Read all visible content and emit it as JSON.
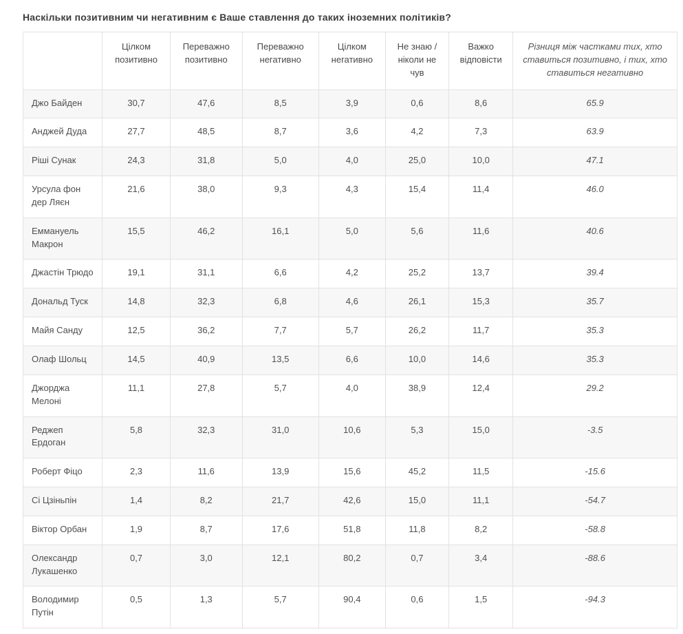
{
  "chart_data": {
    "type": "table",
    "title": "Наскільки позитивним чи негативним є Ваше ставлення до таких іноземних політиків?",
    "columns": [
      "",
      "Цілком позитивно",
      "Переважно позитивно",
      "Переважно негативно",
      "Цілком негативно",
      "Не знаю / ніколи не чув",
      "Важко відповісти",
      "Різниця між частками тих, хто ставиться позитивно, і тих, хто ставиться негативно"
    ],
    "rows": [
      {
        "name": "Джо Байден",
        "values": [
          "30,7",
          "47,6",
          "8,5",
          "3,9",
          "0,6",
          "8,6"
        ],
        "diff": "65.9"
      },
      {
        "name": "Анджей Дуда",
        "values": [
          "27,7",
          "48,5",
          "8,7",
          "3,6",
          "4,2",
          "7,3"
        ],
        "diff": "63.9"
      },
      {
        "name": "Ріші Сунак",
        "values": [
          "24,3",
          "31,8",
          "5,0",
          "4,0",
          "25,0",
          "10,0"
        ],
        "diff": "47.1"
      },
      {
        "name": "Урсула фон дер Ляєн",
        "values": [
          "21,6",
          "38,0",
          "9,3",
          "4,3",
          "15,4",
          "11,4"
        ],
        "diff": "46.0"
      },
      {
        "name": "Еммануель Макрон",
        "values": [
          "15,5",
          "46,2",
          "16,1",
          "5,0",
          "5,6",
          "11,6"
        ],
        "diff": "40.6"
      },
      {
        "name": "Джастін Трюдо",
        "values": [
          "19,1",
          "31,1",
          "6,6",
          "4,2",
          "25,2",
          "13,7"
        ],
        "diff": "39.4"
      },
      {
        "name": "Дональд Туск",
        "values": [
          "14,8",
          "32,3",
          "6,8",
          "4,6",
          "26,1",
          "15,3"
        ],
        "diff": "35.7"
      },
      {
        "name": "Майя Санду",
        "values": [
          "12,5",
          "36,2",
          "7,7",
          "5,7",
          "26,2",
          "11,7"
        ],
        "diff": "35.3"
      },
      {
        "name": "Олаф Шольц",
        "values": [
          "14,5",
          "40,9",
          "13,5",
          "6,6",
          "10,0",
          "14,6"
        ],
        "diff": "35.3"
      },
      {
        "name": "Джорджа Мелоні",
        "values": [
          "11,1",
          "27,8",
          "5,7",
          "4,0",
          "38,9",
          "12,4"
        ],
        "diff": "29.2"
      },
      {
        "name": "Реджеп Ердоган",
        "values": [
          "5,8",
          "32,3",
          "31,0",
          "10,6",
          "5,3",
          "15,0"
        ],
        "diff": "-3.5"
      },
      {
        "name": "Роберт Фіцо",
        "values": [
          "2,3",
          "11,6",
          "13,9",
          "15,6",
          "45,2",
          "11,5"
        ],
        "diff": "-15.6"
      },
      {
        "name": "Сі Цзіньпін",
        "values": [
          "1,4",
          "8,2",
          "21,7",
          "42,6",
          "15,0",
          "11,1"
        ],
        "diff": "-54.7"
      },
      {
        "name": "Віктор Орбан",
        "values": [
          "1,9",
          "8,7",
          "17,6",
          "51,8",
          "11,8",
          "8,2"
        ],
        "diff": "-58.8"
      },
      {
        "name": "Олександр Лукашенко",
        "values": [
          "0,7",
          "3,0",
          "12,1",
          "80,2",
          "0,7",
          "3,4"
        ],
        "diff": "-88.6"
      },
      {
        "name": "Володимир Путін",
        "values": [
          "0,5",
          "1,3",
          "5,7",
          "90,4",
          "0,6",
          "1,5"
        ],
        "diff": "-94.3"
      }
    ],
    "layout": {
      "zebra_stripe_color": "#f7f7f7",
      "border_color": "#e2e2e2",
      "text_color": "#4f4f4f"
    }
  }
}
